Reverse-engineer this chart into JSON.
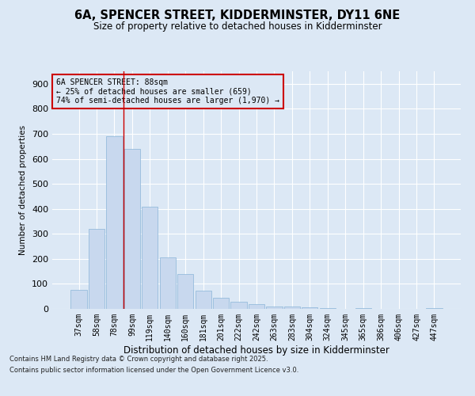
{
  "title": "6A, SPENCER STREET, KIDDERMINSTER, DY11 6NE",
  "subtitle": "Size of property relative to detached houses in Kidderminster",
  "xlabel": "Distribution of detached houses by size in Kidderminster",
  "ylabel": "Number of detached properties",
  "categories": [
    "37sqm",
    "58sqm",
    "78sqm",
    "99sqm",
    "119sqm",
    "140sqm",
    "160sqm",
    "181sqm",
    "201sqm",
    "222sqm",
    "242sqm",
    "263sqm",
    "283sqm",
    "304sqm",
    "324sqm",
    "345sqm",
    "365sqm",
    "386sqm",
    "406sqm",
    "427sqm",
    "447sqm"
  ],
  "values": [
    75,
    320,
    690,
    640,
    410,
    205,
    140,
    72,
    45,
    30,
    20,
    10,
    8,
    5,
    3,
    1,
    2,
    1,
    1,
    1,
    2
  ],
  "bar_color": "#c8d8ee",
  "bar_edge_color": "#8ab4d8",
  "background_color": "#dce8f5",
  "grid_color": "#ffffff",
  "vline_x": 2.5,
  "vline_color": "#cc0000",
  "annotation_title": "6A SPENCER STREET: 88sqm",
  "annotation_line1": "← 25% of detached houses are smaller (659)",
  "annotation_line2": "74% of semi-detached houses are larger (1,970) →",
  "annotation_box_color": "#cc0000",
  "ylim": [
    0,
    950
  ],
  "yticks": [
    0,
    100,
    200,
    300,
    400,
    500,
    600,
    700,
    800,
    900
  ],
  "footnote1": "Contains HM Land Registry data © Crown copyright and database right 2025.",
  "footnote2": "Contains public sector information licensed under the Open Government Licence v3.0."
}
